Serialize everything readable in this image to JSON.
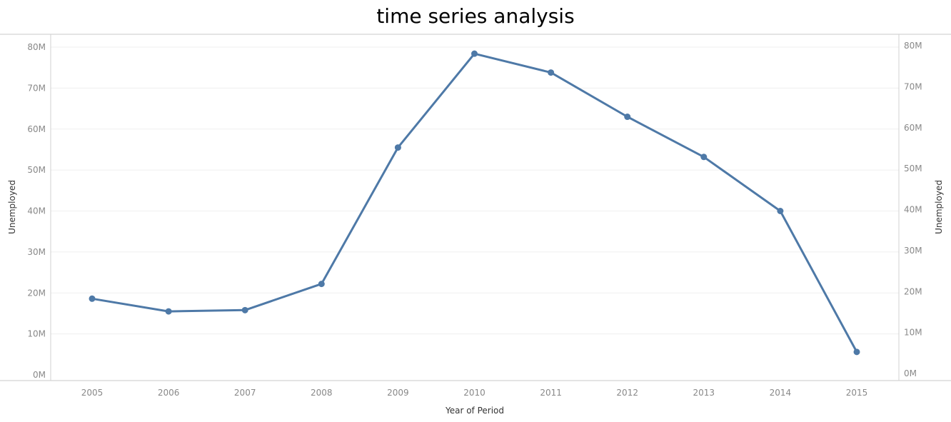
{
  "chart_data": {
    "type": "line",
    "title": "time series analysis",
    "xlabel": "Year of Period",
    "ylabel": "Unemployed",
    "ylabel_right": "Unemployed",
    "categories": [
      "2005",
      "2006",
      "2007",
      "2008",
      "2009",
      "2010",
      "2011",
      "2012",
      "2013",
      "2014",
      "2015"
    ],
    "series": [
      {
        "values": [
          18.6,
          15.5,
          15.8,
          22.2,
          55.5,
          78.4,
          73.8,
          63.0,
          53.2,
          40.0,
          5.6
        ],
        "color": "#4e79a7"
      }
    ],
    "ylim": [
      0,
      80
    ],
    "yticks": [
      0,
      10,
      20,
      30,
      40,
      50,
      60,
      70,
      80
    ],
    "ytick_labels": [
      "0M",
      "10M",
      "20M",
      "30M",
      "40M",
      "50M",
      "60M",
      "70M",
      "80M"
    ],
    "grid": true,
    "markers": true,
    "legend": "none",
    "dual_axis": true
  }
}
